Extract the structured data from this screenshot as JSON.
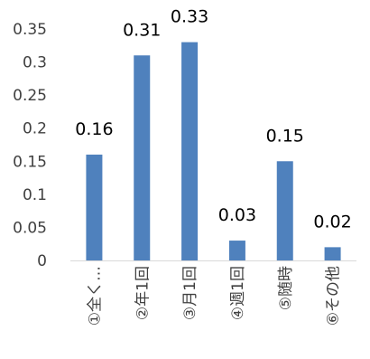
{
  "chart_data": {
    "type": "bar",
    "categories": [
      "①全く…",
      "②年1回",
      "③月1回",
      "④週1回",
      "⑤随時",
      "⑥その他"
    ],
    "values": [
      0.16,
      0.31,
      0.33,
      0.03,
      0.15,
      0.02
    ],
    "data_labels": [
      "0.16",
      "0.31",
      "0.33",
      "0.03",
      "0.15",
      "0.02"
    ],
    "yticks": [
      "0",
      "0.05",
      "0.1",
      "0.15",
      "0.2",
      "0.25",
      "0.3",
      "0.35"
    ],
    "ylim": [
      0,
      0.35
    ],
    "grid": false,
    "legend": "none",
    "bar_color": "#4f81bd",
    "axis_color": "#d9d9d9"
  }
}
